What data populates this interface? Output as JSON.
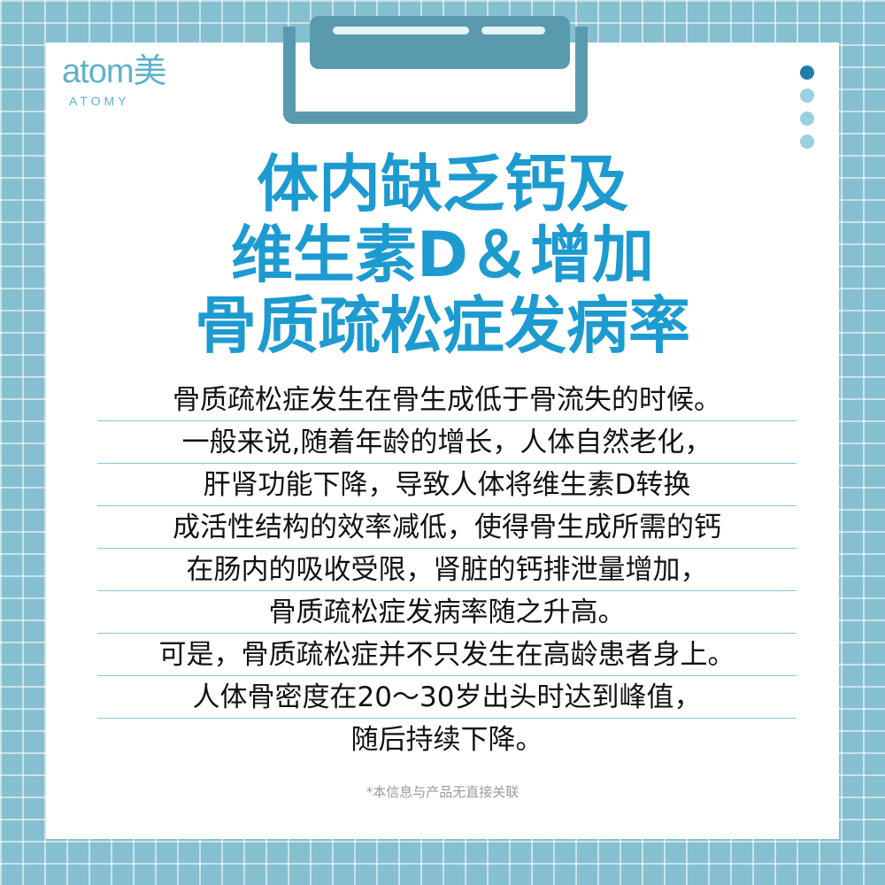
{
  "brand": {
    "logo_text": "atom美",
    "logo_sub": "ATOMY"
  },
  "pager": {
    "total": 4,
    "active": 1
  },
  "title_lines": [
    "体内缺乏钙及",
    "维生素D＆增加",
    "骨质疏松症发病率"
  ],
  "body_lines": [
    "骨质疏松症发生在骨生成低于骨流失的时候。",
    "一般来说,随着年龄的增长，人体自然老化，",
    "肝肾功能下降，导致人体将维生素D转换",
    "成活性结构的效率减低，使得骨生成所需的钙",
    "在肠内的吸收受限，肾脏的钙排泄量增加，",
    "骨质疏松症发病率随之升高。",
    "可是，骨质疏松症并不只发生在高龄患者身上。",
    "人体骨密度在20～30岁出头时达到峰值，",
    "随后持续下降。"
  ],
  "disclaimer": "*本信息与产品无直接关联",
  "colors": {
    "background": "#86c0d0",
    "title": "#1d9bd0",
    "clip": "#5a9aae",
    "logo": "#5fb2c9"
  }
}
